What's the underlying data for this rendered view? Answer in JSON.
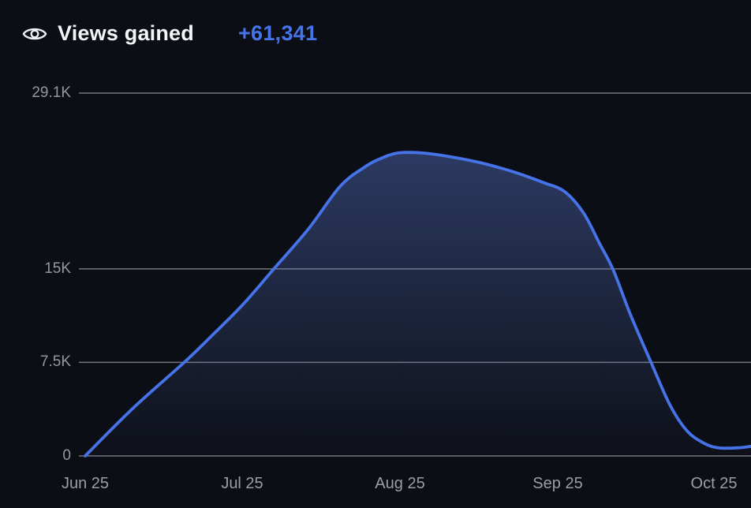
{
  "header": {
    "icon": "eye-icon",
    "title": "Views gained",
    "value": "+61,341"
  },
  "colors": {
    "background": "#0c0e15",
    "title_text": "#f3f4f6",
    "value_text": "#4674e8",
    "line": "#4673e8",
    "area_top": "rgba(93,125,214,0.40)",
    "area_bottom": "rgba(93,125,214,0.02)",
    "grid": "rgba(214,220,232,0.5)",
    "y_tick_text": "#94979f",
    "x_tick_text": "#9b9ea7"
  },
  "chart_data": {
    "type": "area",
    "title": "Views gained",
    "total_gained": 61341,
    "legend": "none",
    "grid": "horizontal gridlines only",
    "x_unit": "months since Jun 25",
    "xlim": [
      0,
      4.24
    ],
    "ylim": [
      0,
      29100
    ],
    "x_ticks": [
      {
        "label": "Jun 25",
        "m": 0
      },
      {
        "label": "Jul 25",
        "m": 1
      },
      {
        "label": "Aug 25",
        "m": 2
      },
      {
        "label": "Sep 25",
        "m": 3
      },
      {
        "label": "Oct 25",
        "m": 4
      }
    ],
    "y_ticks": [
      {
        "label": "29.1K",
        "value": 29100
      },
      {
        "label": "15K",
        "value": 15000
      },
      {
        "label": "7.5K",
        "value": 7500
      },
      {
        "label": "0",
        "value": 0
      }
    ],
    "monthly_values": [
      {
        "x": "Jun 25",
        "views": 0
      },
      {
        "x": "Jul 25",
        "views": 12100
      },
      {
        "x": "Aug 25",
        "views": 24300
      },
      {
        "x": "Sep 25",
        "views": 21300
      },
      {
        "x": "Oct 25",
        "views": 650
      }
    ],
    "series": [
      {
        "name": "Views gained",
        "points": [
          [
            0.0,
            0
          ],
          [
            0.31,
            3900
          ],
          [
            0.63,
            7500
          ],
          [
            0.81,
            9700
          ],
          [
            1.0,
            12100
          ],
          [
            1.2,
            15000
          ],
          [
            1.42,
            18200
          ],
          [
            1.62,
            21600
          ],
          [
            1.77,
            23100
          ],
          [
            1.87,
            23800
          ],
          [
            1.99,
            24300
          ],
          [
            2.14,
            24300
          ],
          [
            2.32,
            24000
          ],
          [
            2.52,
            23500
          ],
          [
            2.72,
            22800
          ],
          [
            2.92,
            21900
          ],
          [
            3.05,
            21200
          ],
          [
            3.17,
            19500
          ],
          [
            3.27,
            17100
          ],
          [
            3.36,
            14900
          ],
          [
            3.47,
            11300
          ],
          [
            3.6,
            7500
          ],
          [
            3.72,
            4100
          ],
          [
            3.83,
            2000
          ],
          [
            3.94,
            1000
          ],
          [
            4.03,
            650
          ],
          [
            4.15,
            650
          ],
          [
            4.24,
            780
          ]
        ]
      }
    ]
  }
}
